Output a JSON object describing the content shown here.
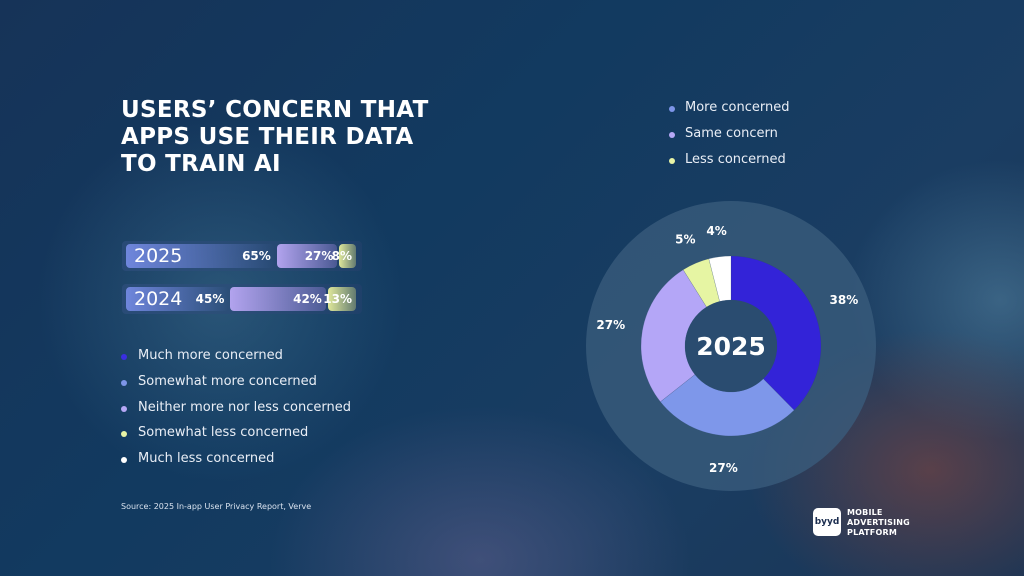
{
  "title": "USERS’ CONCERN THAT APPS USE THEIR DATA TO TRAIN AI",
  "source": "Source: 2025 In-app User Privacy Report, Verve",
  "brand": {
    "logo_text": "byyd",
    "tagline": "MOBILE\nADVERTISING\nPLATFORM"
  },
  "chart_data": [
    {
      "type": "bar",
      "orientation": "horizontal-stacked",
      "categories": [
        "2025",
        "2024"
      ],
      "series": [
        {
          "name": "More concerned",
          "values": [
            65,
            45
          ],
          "labels": [
            "65%",
            "45%"
          ]
        },
        {
          "name": "Same concern",
          "values": [
            27,
            42
          ],
          "labels": [
            "27%",
            "42%"
          ]
        },
        {
          "name": "Less concerned",
          "values": [
            8,
            13
          ],
          "labels": [
            "8%",
            "13%"
          ]
        }
      ],
      "legend": [
        {
          "label": "Much more concerned",
          "color": "#3a2ee0"
        },
        {
          "label": "Somewhat more concerned",
          "color": "#7d95e8"
        },
        {
          "label": "Neither more nor less concerned",
          "color": "#b7a8f6"
        },
        {
          "label": "Somewhat less concerned",
          "color": "#e8f4a6"
        },
        {
          "label": "Much less concerned",
          "color": "#ffffff"
        }
      ],
      "legend_placement": "below"
    },
    {
      "type": "pie",
      "variant": "donut",
      "center_label": "2025",
      "slices": [
        {
          "name": "Much more concerned",
          "value": 38,
          "label": "38%",
          "color": "#3323d8"
        },
        {
          "name": "Somewhat more concerned",
          "value": 27,
          "label": "27%",
          "color": "#7e97ea"
        },
        {
          "name": "Neither more nor less concerned",
          "value": 27,
          "label": "27%",
          "color": "#b4a6f7"
        },
        {
          "name": "Somewhat less concerned",
          "value": 5,
          "label": "5%",
          "color": "#e6f5a3"
        },
        {
          "name": "Much less concerned",
          "value": 4,
          "label": "4%",
          "color": "#ffffff"
        }
      ],
      "legend": [
        {
          "label": "More concerned",
          "color": "#7d95e8"
        },
        {
          "label": "Same concern",
          "color": "#b7a8f6"
        },
        {
          "label": "Less concerned",
          "color": "#e8f4a6"
        }
      ],
      "legend_placement": "top"
    }
  ],
  "colors": {
    "bar_more": "#6f86dc",
    "bar_same": "#b2a3ee",
    "bar_less": "#dfe89a",
    "donut_track": "#3b5d7e",
    "donut_center": "#2a4c70"
  }
}
